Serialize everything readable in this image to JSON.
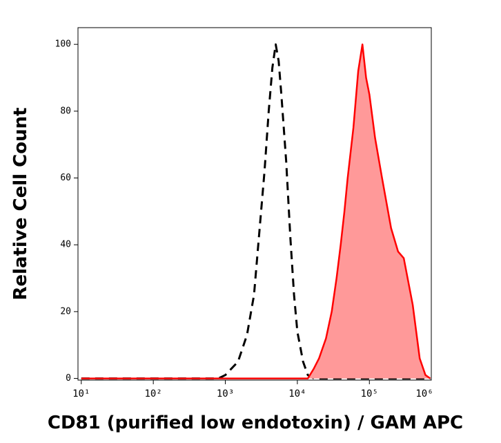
{
  "chart_data": {
    "type": "line",
    "x_label": "CD81 (purified low endotoxin) / GAM APC",
    "y_label": "Relative Cell Count",
    "x_scale": "log",
    "xlim": [
      9,
      724000
    ],
    "ylim": [
      -0.5,
      105
    ],
    "xticks": [
      {
        "value": 10,
        "label": "10¹"
      },
      {
        "value": 100,
        "label": "10²"
      },
      {
        "value": 1000,
        "label": "10³"
      },
      {
        "value": 10000,
        "label": "10⁴"
      },
      {
        "value": 100000,
        "label": "10⁵"
      },
      {
        "value": 1000000,
        "label": "10⁶"
      }
    ],
    "yticks": [
      0,
      20,
      40,
      60,
      80,
      100
    ],
    "x": [
      10,
      100,
      500,
      800,
      1000,
      1500,
      2000,
      2500,
      3000,
      3500,
      4000,
      4500,
      5000,
      5500,
      6000,
      7000,
      8000,
      9000,
      10000,
      12000,
      14000,
      17000,
      20000,
      25000,
      30000,
      35000,
      40000,
      45000,
      50000,
      60000,
      70000,
      80000,
      90000,
      100000,
      120000,
      150000,
      200000,
      250000,
      300000,
      400000,
      500000,
      600000,
      700000
    ],
    "series": [
      {
        "color": "#000000",
        "line_style": "dashed",
        "values": [
          0,
          0,
          0,
          0,
          1,
          5,
          13,
          25,
          45,
          62,
          80,
          93,
          100,
          95,
          85,
          65,
          42,
          25,
          14,
          5,
          1,
          0,
          0,
          0,
          0,
          0,
          0,
          0,
          0,
          0,
          0,
          0,
          0,
          0,
          0,
          0,
          0,
          0,
          0,
          0,
          0,
          0,
          0
        ]
      },
      {
        "color": "#ff0000",
        "fill_color": "#ff9999",
        "line_style": "solid",
        "values": [
          0,
          0,
          0,
          0,
          0,
          0,
          0,
          0,
          0,
          0,
          0,
          0,
          0,
          0,
          0,
          0,
          0,
          0,
          0,
          0,
          0,
          3,
          6,
          12,
          20,
          30,
          40,
          50,
          60,
          75,
          92,
          100,
          90,
          85,
          72,
          60,
          45,
          38,
          36,
          22,
          6,
          1,
          0
        ]
      }
    ]
  }
}
